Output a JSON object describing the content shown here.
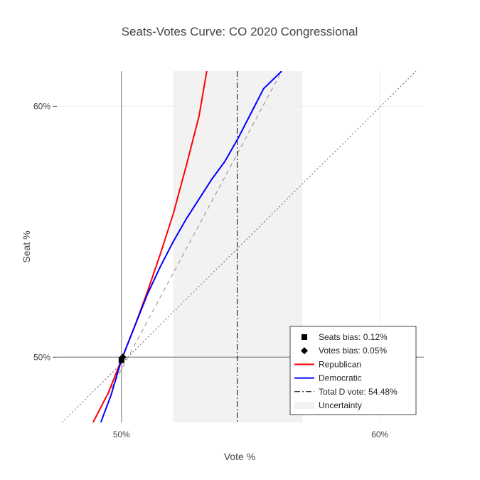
{
  "chart_data": {
    "type": "line",
    "title": "Seats-Votes Curve: CO 2020 Congressional",
    "xlabel": "Vote %",
    "ylabel": "Seat %",
    "xlim": [
      47.5,
      61.7
    ],
    "ylim": [
      47.4,
      61.4
    ],
    "x_ticks": [
      {
        "value": 50,
        "label": "50%"
      },
      {
        "value": 60,
        "label": "60%"
      }
    ],
    "y_ticks": [
      {
        "value": 50,
        "label": "50%"
      },
      {
        "value": 60,
        "label": "60%"
      }
    ],
    "grid": true,
    "legend_position": "bottom-right",
    "uncertainty_band": {
      "x0": 52.0,
      "x1": 57.0,
      "color": "#f2f2f2"
    },
    "total_d_vote": 54.48,
    "series": [
      {
        "name": "Republican",
        "color": "#ff0000",
        "x": [
          48.9,
          49.5,
          50.0,
          50.5,
          51.0,
          51.5,
          52.0,
          52.5,
          53.0,
          53.3
        ],
        "y": [
          47.4,
          48.6,
          49.9,
          51.2,
          52.6,
          54.1,
          55.7,
          57.6,
          59.6,
          61.4
        ]
      },
      {
        "name": "Democratic",
        "color": "#0000ff",
        "x": [
          49.2,
          49.6,
          50.0,
          50.5,
          51.0,
          51.5,
          52.0,
          52.5,
          53.0,
          53.5,
          54.0,
          54.5,
          55.0,
          55.5,
          56.0,
          56.2
        ],
        "y": [
          47.4,
          48.5,
          49.9,
          51.2,
          52.5,
          53.6,
          54.6,
          55.5,
          56.3,
          57.1,
          57.8,
          58.7,
          59.7,
          60.7,
          61.2,
          61.4
        ]
      }
    ],
    "reference_lines": [
      {
        "name": "",
        "style": "dashed",
        "color": "#8c8c8c",
        "x": [
          48.9,
          56.2
        ],
        "y": [
          47.4,
          61.4
        ]
      },
      {
        "name": "",
        "style": "dotted",
        "color": "#666666",
        "x": [
          47.7,
          61.4
        ],
        "y": [
          47.4,
          61.4
        ]
      }
    ],
    "markers": [
      {
        "name": "Seats bias: 0.12%",
        "symbol": "square",
        "x": 50.0,
        "y": 49.88
      },
      {
        "name": "Votes bias: 0.05%",
        "symbol": "diamond",
        "x": 50.05,
        "y": 50.0
      }
    ],
    "legend": [
      {
        "label": "Seats bias: 0.12%",
        "kind": "square"
      },
      {
        "label": "Votes bias: 0.05%",
        "kind": "diamond"
      },
      {
        "label": "Republican",
        "kind": "line",
        "color": "#ff0000"
      },
      {
        "label": "Democratic",
        "kind": "line",
        "color": "#0000ff"
      },
      {
        "label": "Total D vote: 54.48%",
        "kind": "dashdot"
      },
      {
        "label": "Uncertainty",
        "kind": "band"
      }
    ]
  }
}
